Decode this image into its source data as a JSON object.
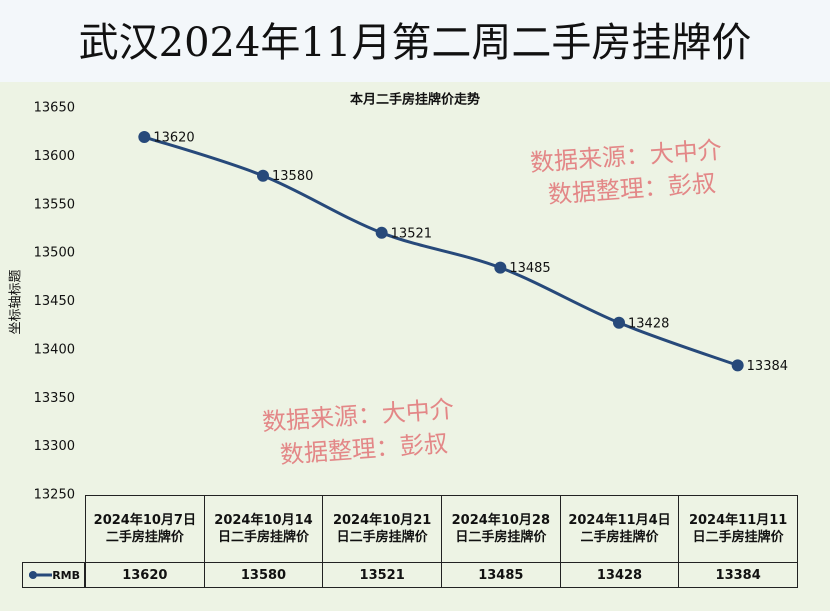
{
  "title": "武汉2024年11月第二周二手房挂牌价",
  "chart_data": {
    "type": "line",
    "title": "本月二手房挂牌价走势",
    "y_label": "坐标轴标题",
    "categories": [
      "2024年10月7日二手房挂牌价",
      "2024年10月14日二手房挂牌价",
      "2024年10月21日二手房挂牌价",
      "2024年10月28日二手房挂牌价",
      "2024年11月4日二手房挂牌价",
      "2024年11月11日二手房挂牌价"
    ],
    "series": [
      {
        "name": "RMB",
        "color": "#27497a",
        "values": [
          13620,
          13580,
          13521,
          13485,
          13428,
          13384
        ]
      }
    ],
    "ylim": [
      13250,
      13650
    ],
    "yticks": [
      13250,
      13300,
      13350,
      13400,
      13450,
      13500,
      13550,
      13600,
      13650
    ],
    "smooth": true,
    "data_table": true,
    "annotations": [
      "数据来源：大中介",
      "数据整理：彭叔",
      "数据来源：大中介",
      "数据整理：彭叔"
    ]
  }
}
